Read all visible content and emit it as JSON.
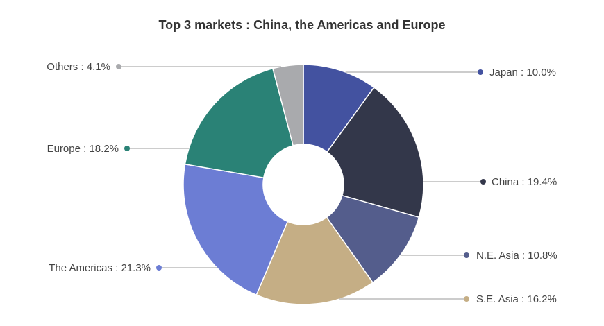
{
  "chart_data": {
    "type": "pie",
    "title": "Top 3 markets : China, the Americas and Europe",
    "donut": true,
    "unit": "%",
    "slices": [
      {
        "label": "Japan",
        "value": 10.0,
        "color": "#4352a0"
      },
      {
        "label": "China",
        "value": 19.4,
        "color": "#33374a"
      },
      {
        "label": "N.E. Asia",
        "value": 10.8,
        "color": "#545d8c"
      },
      {
        "label": "S.E. Asia",
        "value": 16.2,
        "color": "#c5ae85"
      },
      {
        "label": "The Americas",
        "value": 21.3,
        "color": "#6c7dd4"
      },
      {
        "label": "Europe",
        "value": 18.2,
        "color": "#2a8276"
      },
      {
        "label": "Others",
        "value": 4.1,
        "color": "#a9aaad"
      }
    ]
  }
}
